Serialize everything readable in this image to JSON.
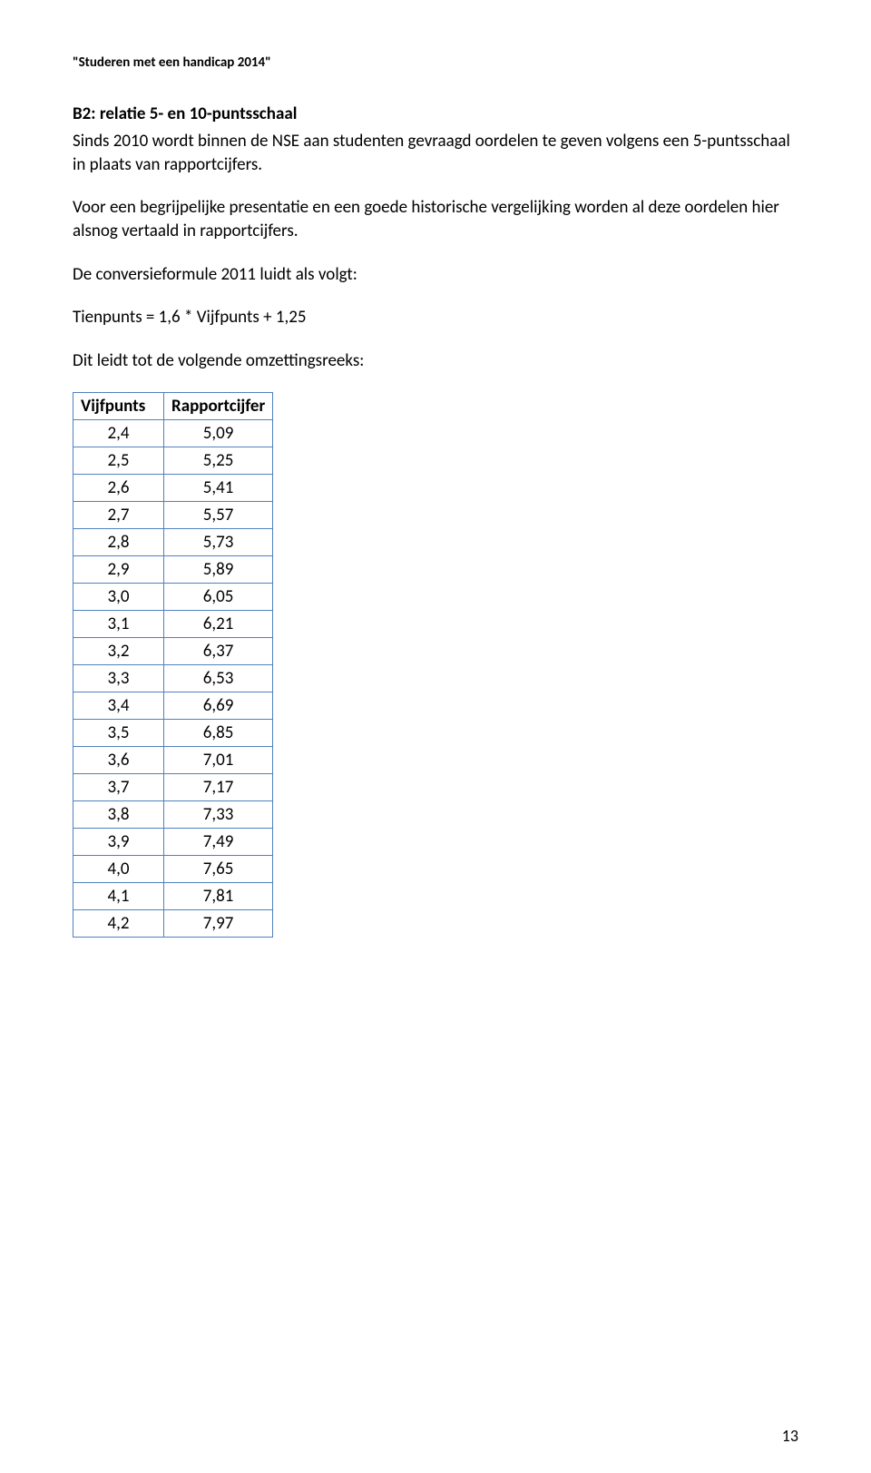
{
  "doc_header": "\"Studeren met een handicap 2014\"",
  "section_heading": "B2: relatie 5- en 10-puntsschaal",
  "para1": "Sinds 2010 wordt binnen de NSE aan studenten gevraagd oordelen te geven volgens een 5-puntsschaal in plaats van rapportcijfers.",
  "para2": "Voor een begrijpelijke presentatie en een goede historische vergelijking worden al deze oordelen hier alsnog vertaald in rapportcijfers.",
  "para3": "De conversieformule 2011 luidt als volgt:",
  "para4": "Tienpunts = 1,6 * Vijfpunts + 1,25",
  "para5": "Dit leidt tot de volgende omzettingsreeks:",
  "table": {
    "columns": [
      "Vijfpunts",
      "Rapportcijfer"
    ],
    "rows": [
      [
        "2,4",
        "5,09"
      ],
      [
        "2,5",
        "5,25"
      ],
      [
        "2,6",
        "5,41"
      ],
      [
        "2,7",
        "5,57"
      ],
      [
        "2,8",
        "5,73"
      ],
      [
        "2,9",
        "5,89"
      ],
      [
        "3,0",
        "6,05"
      ],
      [
        "3,1",
        "6,21"
      ],
      [
        "3,2",
        "6,37"
      ],
      [
        "3,3",
        "6,53"
      ],
      [
        "3,4",
        "6,69"
      ],
      [
        "3,5",
        "6,85"
      ],
      [
        "3,6",
        "7,01"
      ],
      [
        "3,7",
        "7,17"
      ],
      [
        "3,8",
        "7,33"
      ],
      [
        "3,9",
        "7,49"
      ],
      [
        "4,0",
        "7,65"
      ],
      [
        "4,1",
        "7,81"
      ],
      [
        "4,2",
        "7,97"
      ]
    ],
    "border_color": "#4f81bd",
    "header_fontweight": "bold"
  },
  "page_number": "13",
  "colors": {
    "text": "#000000",
    "background": "#ffffff",
    "table_border": "#4f81bd"
  },
  "fonts": {
    "body_family": "Calibri",
    "body_size_pt": 14,
    "header_size_pt": 11
  }
}
